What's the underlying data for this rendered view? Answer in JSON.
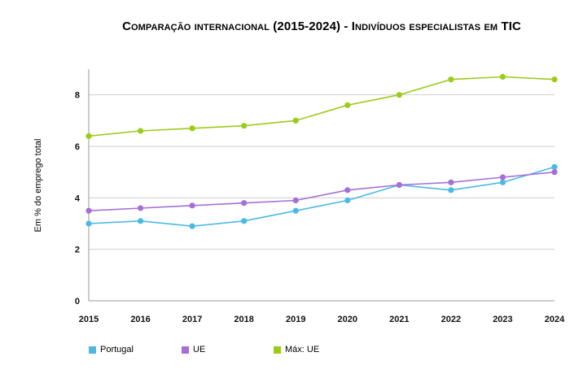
{
  "chart_data": {
    "type": "line",
    "title": "Comparação internacional (2015-2024) - Indivíduos especialistas em TIC",
    "xlabel": "",
    "ylabel": "Em % do emprego total",
    "x": [
      "2015",
      "2016",
      "2017",
      "2018",
      "2019",
      "2020",
      "2021",
      "2022",
      "2023",
      "2024"
    ],
    "ylim": [
      0,
      9
    ],
    "yticks": [
      "0",
      "2",
      "4",
      "6",
      "8"
    ],
    "grid": true,
    "legend_position": "bottom-left",
    "series": [
      {
        "name": "Portugal",
        "color": "#4bb9e6",
        "values": [
          3.0,
          3.1,
          2.9,
          3.1,
          3.5,
          3.9,
          4.5,
          4.3,
          4.6,
          5.2
        ]
      },
      {
        "name": "UE",
        "color": "#a56fd6",
        "values": [
          3.5,
          3.6,
          3.7,
          3.8,
          3.9,
          4.3,
          4.5,
          4.6,
          4.8,
          5.0
        ]
      },
      {
        "name": "Máx: UE",
        "color": "#9dcb1a",
        "values": [
          6.4,
          6.6,
          6.7,
          6.8,
          7.0,
          7.6,
          8.0,
          8.6,
          8.7,
          8.6
        ]
      }
    ]
  }
}
